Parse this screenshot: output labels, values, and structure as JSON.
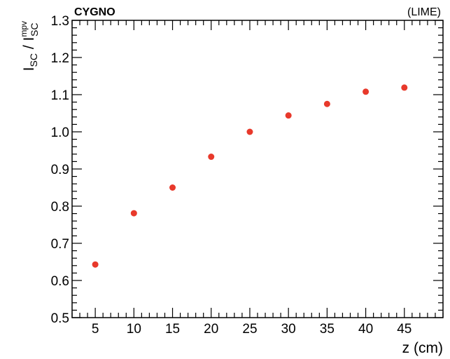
{
  "chart_data": {
    "type": "scatter",
    "title": "",
    "top_left_label": "CYGNO",
    "top_right_label": "(LIME)",
    "xlabel": "z (cm)",
    "ylabel": {
      "main": "I",
      "sub1": "SC",
      "separator": " / I",
      "sup": "mpv",
      "sub2": "SC"
    },
    "xlim": [
      2,
      50
    ],
    "ylim": [
      0.5,
      1.3
    ],
    "x_ticks": [
      5,
      10,
      15,
      20,
      25,
      30,
      35,
      40,
      45
    ],
    "x_tick_labels": [
      "5",
      "10",
      "15",
      "20",
      "25",
      "30",
      "35",
      "40",
      "45"
    ],
    "y_ticks": [
      0.5,
      0.6,
      0.7,
      0.8,
      0.9,
      1.0,
      1.1,
      1.2,
      1.3
    ],
    "y_tick_labels": [
      "0.5",
      "0.6",
      "0.7",
      "0.8",
      "0.9",
      "1.0",
      "1.1",
      "1.2",
      "1.3"
    ],
    "x_minor_step": 1,
    "y_minor_step": 0.02,
    "grid": false,
    "marker_color": "#e8392b",
    "x": [
      5,
      10,
      15,
      20,
      25,
      30,
      35,
      40,
      45
    ],
    "y": [
      0.643,
      0.781,
      0.85,
      0.933,
      1.0,
      1.044,
      1.075,
      1.108,
      1.119
    ]
  }
}
